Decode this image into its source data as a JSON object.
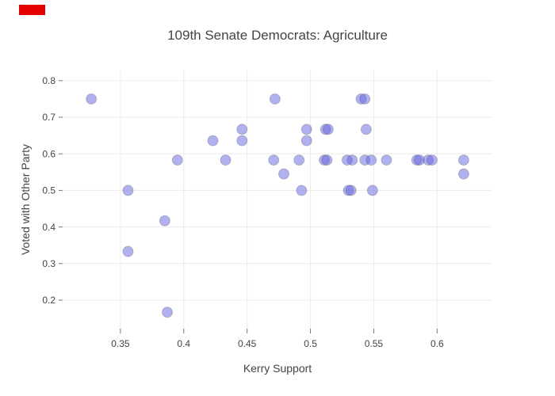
{
  "annotation": {
    "color": "#e60000"
  },
  "chart_data": {
    "type": "scatter",
    "title": "109th Senate Democrats: Agriculture",
    "xlabel": "Kerry Support",
    "ylabel": "Voted with Other Party",
    "x_ticks": [
      0.35,
      0.4,
      0.45,
      0.5,
      0.55,
      0.6
    ],
    "y_ticks": [
      0.2,
      0.3,
      0.4,
      0.5,
      0.6,
      0.7,
      0.8
    ],
    "xlim": [
      0.305,
      0.643
    ],
    "ylim": [
      0.122,
      0.83
    ],
    "grid": true,
    "legend": false,
    "grid_color": "#ececec",
    "tick_color": "#777777",
    "text_color": "#444444",
    "marker_color": "#6363e0",
    "marker_opacity": 0.5,
    "points": [
      [
        0.327,
        0.75
      ],
      [
        0.472,
        0.75
      ],
      [
        0.54,
        0.75
      ],
      [
        0.543,
        0.75
      ],
      [
        0.446,
        0.667
      ],
      [
        0.497,
        0.667
      ],
      [
        0.512,
        0.667
      ],
      [
        0.514,
        0.667
      ],
      [
        0.544,
        0.667
      ],
      [
        0.423,
        0.636
      ],
      [
        0.446,
        0.636
      ],
      [
        0.497,
        0.636
      ],
      [
        0.395,
        0.583
      ],
      [
        0.433,
        0.583
      ],
      [
        0.471,
        0.583
      ],
      [
        0.491,
        0.583
      ],
      [
        0.511,
        0.583
      ],
      [
        0.513,
        0.583
      ],
      [
        0.529,
        0.583
      ],
      [
        0.533,
        0.583
      ],
      [
        0.543,
        0.583
      ],
      [
        0.548,
        0.583
      ],
      [
        0.56,
        0.583
      ],
      [
        0.584,
        0.583
      ],
      [
        0.586,
        0.583
      ],
      [
        0.593,
        0.583
      ],
      [
        0.596,
        0.583
      ],
      [
        0.621,
        0.583
      ],
      [
        0.479,
        0.545
      ],
      [
        0.621,
        0.545
      ],
      [
        0.356,
        0.5
      ],
      [
        0.493,
        0.5
      ],
      [
        0.53,
        0.5
      ],
      [
        0.532,
        0.5
      ],
      [
        0.549,
        0.5
      ],
      [
        0.385,
        0.417
      ],
      [
        0.356,
        0.333
      ],
      [
        0.387,
        0.167
      ]
    ]
  }
}
